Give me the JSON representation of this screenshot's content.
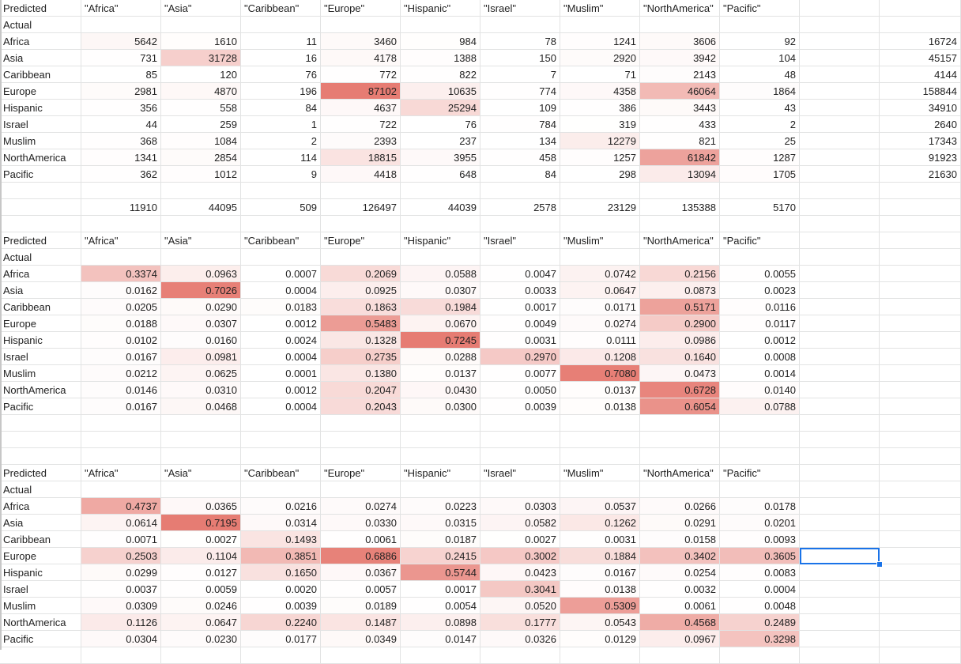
{
  "sheet": {
    "selected": {
      "block": 2,
      "row": 3,
      "col": 9
    },
    "block1": {
      "header_label": "Predicted",
      "actual_label": "Actual",
      "columns": [
        "\"Africa\"",
        "\"Asia\"",
        "\"Caribbean\"",
        "\"Europe\"",
        "\"Hispanic\"",
        "\"Israel\"",
        "\"Muslim\"",
        "\"NorthAmerica\"",
        "\"Pacific\""
      ],
      "rows": [
        {
          "label": "Africa",
          "values": [
            "5642",
            "1610",
            "11",
            "3460",
            "984",
            "78",
            "1241",
            "3606",
            "92"
          ],
          "total": "16724"
        },
        {
          "label": "Asia",
          "values": [
            "731",
            "31728",
            "16",
            "4178",
            "1388",
            "150",
            "2920",
            "3942",
            "104"
          ],
          "total": "45157"
        },
        {
          "label": "Caribbean",
          "values": [
            "85",
            "120",
            "76",
            "772",
            "822",
            "7",
            "71",
            "2143",
            "48"
          ],
          "total": "4144"
        },
        {
          "label": "Europe",
          "values": [
            "2981",
            "4870",
            "196",
            "87102",
            "10635",
            "774",
            "4358",
            "46064",
            "1864"
          ],
          "total": "158844"
        },
        {
          "label": "Hispanic",
          "values": [
            "356",
            "558",
            "84",
            "4637",
            "25294",
            "109",
            "386",
            "3443",
            "43"
          ],
          "total": "34910"
        },
        {
          "label": "Israel",
          "values": [
            "44",
            "259",
            "1",
            "722",
            "76",
            "784",
            "319",
            "433",
            "2"
          ],
          "total": "2640"
        },
        {
          "label": "Muslim",
          "values": [
            "368",
            "1084",
            "2",
            "2393",
            "237",
            "134",
            "12279",
            "821",
            "25"
          ],
          "total": "17343"
        },
        {
          "label": "NorthAmerica",
          "values": [
            "1341",
            "2854",
            "114",
            "18815",
            "3955",
            "458",
            "1257",
            "61842",
            "1287"
          ],
          "total": "91923"
        },
        {
          "label": "Pacific",
          "values": [
            "362",
            "1012",
            "9",
            "4418",
            "648",
            "84",
            "298",
            "13094",
            "1705"
          ],
          "total": "21630"
        }
      ],
      "col_totals": [
        "11910",
        "44095",
        "509",
        "126497",
        "44039",
        "2578",
        "23129",
        "135388",
        "5170"
      ]
    },
    "block2": {
      "header_label": "Predicted",
      "actual_label": "Actual",
      "columns": [
        "\"Africa\"",
        "\"Asia\"",
        "\"Caribbean\"",
        "\"Europe\"",
        "\"Hispanic\"",
        "\"Israel\"",
        "\"Muslim\"",
        "\"NorthAmerica\"",
        "\"Pacific\""
      ],
      "rows": [
        {
          "label": "Africa",
          "values": [
            "0.3374",
            "0.0963",
            "0.0007",
            "0.2069",
            "0.0588",
            "0.0047",
            "0.0742",
            "0.2156",
            "0.0055"
          ]
        },
        {
          "label": "Asia",
          "values": [
            "0.0162",
            "0.7026",
            "0.0004",
            "0.0925",
            "0.0307",
            "0.0033",
            "0.0647",
            "0.0873",
            "0.0023"
          ]
        },
        {
          "label": "Caribbean",
          "values": [
            "0.0205",
            "0.0290",
            "0.0183",
            "0.1863",
            "0.1984",
            "0.0017",
            "0.0171",
            "0.5171",
            "0.0116"
          ]
        },
        {
          "label": "Europe",
          "values": [
            "0.0188",
            "0.0307",
            "0.0012",
            "0.5483",
            "0.0670",
            "0.0049",
            "0.0274",
            "0.2900",
            "0.0117"
          ]
        },
        {
          "label": "Hispanic",
          "values": [
            "0.0102",
            "0.0160",
            "0.0024",
            "0.1328",
            "0.7245",
            "0.0031",
            "0.0111",
            "0.0986",
            "0.0012"
          ]
        },
        {
          "label": "Israel",
          "values": [
            "0.0167",
            "0.0981",
            "0.0004",
            "0.2735",
            "0.0288",
            "0.2970",
            "0.1208",
            "0.1640",
            "0.0008"
          ]
        },
        {
          "label": "Muslim",
          "values": [
            "0.0212",
            "0.0625",
            "0.0001",
            "0.1380",
            "0.0137",
            "0.0077",
            "0.7080",
            "0.0473",
            "0.0014"
          ]
        },
        {
          "label": "NorthAmerica",
          "values": [
            "0.0146",
            "0.0310",
            "0.0012",
            "0.2047",
            "0.0430",
            "0.0050",
            "0.0137",
            "0.6728",
            "0.0140"
          ]
        },
        {
          "label": "Pacific",
          "values": [
            "0.0167",
            "0.0468",
            "0.0004",
            "0.2043",
            "0.0300",
            "0.0039",
            "0.0138",
            "0.6054",
            "0.0788"
          ]
        }
      ]
    },
    "block3": {
      "header_label": "Predicted",
      "actual_label": "Actual",
      "columns": [
        "\"Africa\"",
        "\"Asia\"",
        "\"Caribbean\"",
        "\"Europe\"",
        "\"Hispanic\"",
        "\"Israel\"",
        "\"Muslim\"",
        "\"NorthAmerica\"",
        "\"Pacific\""
      ],
      "rows": [
        {
          "label": "Africa",
          "values": [
            "0.4737",
            "0.0365",
            "0.0216",
            "0.0274",
            "0.0223",
            "0.0303",
            "0.0537",
            "0.0266",
            "0.0178"
          ]
        },
        {
          "label": "Asia",
          "values": [
            "0.0614",
            "0.7195",
            "0.0314",
            "0.0330",
            "0.0315",
            "0.0582",
            "0.1262",
            "0.0291",
            "0.0201"
          ]
        },
        {
          "label": "Caribbean",
          "values": [
            "0.0071",
            "0.0027",
            "0.1493",
            "0.0061",
            "0.0187",
            "0.0027",
            "0.0031",
            "0.0158",
            "0.0093"
          ]
        },
        {
          "label": "Europe",
          "values": [
            "0.2503",
            "0.1104",
            "0.3851",
            "0.6886",
            "0.2415",
            "0.3002",
            "0.1884",
            "0.3402",
            "0.3605"
          ]
        },
        {
          "label": "Hispanic",
          "values": [
            "0.0299",
            "0.0127",
            "0.1650",
            "0.0367",
            "0.5744",
            "0.0423",
            "0.0167",
            "0.0254",
            "0.0083"
          ]
        },
        {
          "label": "Israel",
          "values": [
            "0.0037",
            "0.0059",
            "0.0020",
            "0.0057",
            "0.0017",
            "0.3041",
            "0.0138",
            "0.0032",
            "0.0004"
          ]
        },
        {
          "label": "Muslim",
          "values": [
            "0.0309",
            "0.0246",
            "0.0039",
            "0.0189",
            "0.0054",
            "0.0520",
            "0.5309",
            "0.0061",
            "0.0048"
          ]
        },
        {
          "label": "NorthAmerica",
          "values": [
            "0.1126",
            "0.0647",
            "0.2240",
            "0.1487",
            "0.0898",
            "0.1777",
            "0.0543",
            "0.4568",
            "0.2489"
          ]
        },
        {
          "label": "Pacific",
          "values": [
            "0.0304",
            "0.0230",
            "0.0177",
            "0.0349",
            "0.0147",
            "0.0326",
            "0.0129",
            "0.0967",
            "0.3298"
          ]
        }
      ]
    }
  }
}
